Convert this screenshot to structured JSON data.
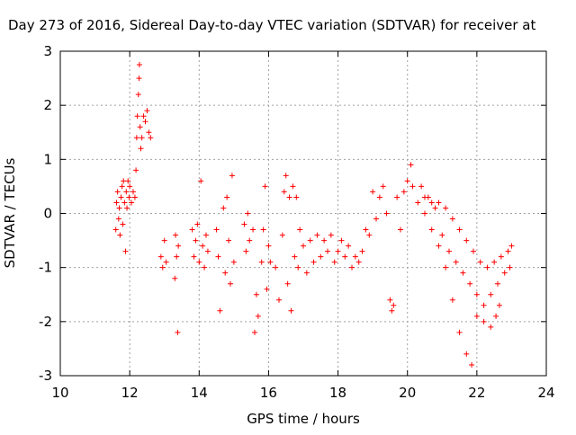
{
  "chart_data": {
    "type": "scatter",
    "title": "Day 273 of 2016, Sidereal Day-to-day VTEC variation (SDTVAR) for receiver at",
    "xlabel": "GPS time / hours",
    "ylabel": "SDTVAR / TECUs",
    "xlim": [
      10,
      24
    ],
    "ylim": [
      -3,
      3
    ],
    "xticks": [
      10,
      12,
      14,
      16,
      18,
      20,
      22,
      24
    ],
    "yticks": [
      -3,
      -2,
      -1,
      0,
      1,
      2,
      3
    ],
    "xtick_labels": [
      "10",
      "12",
      "14",
      "16",
      "18",
      "20",
      "22",
      "24"
    ],
    "ytick_labels": [
      "-3",
      "-2",
      "-1",
      "0",
      "1",
      "2",
      "3"
    ],
    "grid": true,
    "marker": "plus",
    "color": "#ff0000",
    "series": [
      {
        "name": "SDTVAR",
        "points": [
          [
            11.6,
            -0.3
          ],
          [
            11.62,
            0.2
          ],
          [
            11.65,
            0.4
          ],
          [
            11.68,
            -0.1
          ],
          [
            11.7,
            0.1
          ],
          [
            11.72,
            -0.4
          ],
          [
            11.75,
            0.3
          ],
          [
            11.78,
            0.5
          ],
          [
            11.8,
            -0.2
          ],
          [
            11.82,
            0.6
          ],
          [
            11.85,
            0.2
          ],
          [
            11.88,
            -0.7
          ],
          [
            11.9,
            0.4
          ],
          [
            11.92,
            0.1
          ],
          [
            11.95,
            0.6
          ],
          [
            11.98,
            0.3
          ],
          [
            12.0,
            0.5
          ],
          [
            12.05,
            0.2
          ],
          [
            12.1,
            0.4
          ],
          [
            12.15,
            0.3
          ],
          [
            12.18,
            0.8
          ],
          [
            12.2,
            1.4
          ],
          [
            12.22,
            1.8
          ],
          [
            12.25,
            2.2
          ],
          [
            12.27,
            2.5
          ],
          [
            12.28,
            2.75
          ],
          [
            12.3,
            1.6
          ],
          [
            12.32,
            1.2
          ],
          [
            12.35,
            1.4
          ],
          [
            12.4,
            1.8
          ],
          [
            12.45,
            1.7
          ],
          [
            12.5,
            1.9
          ],
          [
            12.55,
            1.5
          ],
          [
            12.6,
            1.4
          ],
          [
            12.9,
            -0.8
          ],
          [
            12.95,
            -1.0
          ],
          [
            13.0,
            -0.5
          ],
          [
            13.05,
            -0.9
          ],
          [
            13.3,
            -1.2
          ],
          [
            13.32,
            -0.4
          ],
          [
            13.35,
            -0.8
          ],
          [
            13.38,
            -2.2
          ],
          [
            13.4,
            -0.6
          ],
          [
            13.8,
            -0.3
          ],
          [
            13.85,
            -0.8
          ],
          [
            13.9,
            -0.5
          ],
          [
            13.95,
            -0.2
          ],
          [
            14.0,
            -0.9
          ],
          [
            14.05,
            0.6
          ],
          [
            14.1,
            -0.6
          ],
          [
            14.15,
            -1.0
          ],
          [
            14.2,
            -0.4
          ],
          [
            14.25,
            -0.7
          ],
          [
            14.5,
            -0.3
          ],
          [
            14.55,
            -0.8
          ],
          [
            14.6,
            -1.8
          ],
          [
            14.7,
            0.1
          ],
          [
            14.75,
            -1.1
          ],
          [
            14.8,
            0.3
          ],
          [
            14.85,
            -0.5
          ],
          [
            14.9,
            -1.3
          ],
          [
            14.95,
            0.7
          ],
          [
            15.0,
            -0.9
          ],
          [
            15.3,
            -0.2
          ],
          [
            15.35,
            -0.7
          ],
          [
            15.4,
            0.0
          ],
          [
            15.45,
            -0.5
          ],
          [
            15.55,
            -0.3
          ],
          [
            15.6,
            -2.2
          ],
          [
            15.65,
            -1.5
          ],
          [
            15.7,
            -1.9
          ],
          [
            15.8,
            -0.9
          ],
          [
            15.85,
            -0.3
          ],
          [
            15.9,
            0.5
          ],
          [
            15.95,
            -1.4
          ],
          [
            16.0,
            -0.6
          ],
          [
            16.05,
            -0.9
          ],
          [
            16.2,
            -1.0
          ],
          [
            16.3,
            -1.6
          ],
          [
            16.4,
            -0.4
          ],
          [
            16.45,
            0.4
          ],
          [
            16.5,
            0.7
          ],
          [
            16.55,
            -1.3
          ],
          [
            16.6,
            0.3
          ],
          [
            16.65,
            -1.8
          ],
          [
            16.7,
            0.5
          ],
          [
            16.75,
            -0.8
          ],
          [
            16.8,
            0.3
          ],
          [
            16.85,
            -1.0
          ],
          [
            16.9,
            -0.3
          ],
          [
            17.0,
            -0.6
          ],
          [
            17.1,
            -1.1
          ],
          [
            17.2,
            -0.5
          ],
          [
            17.3,
            -0.9
          ],
          [
            17.4,
            -0.4
          ],
          [
            17.5,
            -0.8
          ],
          [
            17.6,
            -0.5
          ],
          [
            17.7,
            -0.7
          ],
          [
            17.8,
            -0.4
          ],
          [
            17.9,
            -0.9
          ],
          [
            18.0,
            -0.7
          ],
          [
            18.1,
            -0.5
          ],
          [
            18.2,
            -0.8
          ],
          [
            18.3,
            -0.6
          ],
          [
            18.4,
            -1.0
          ],
          [
            18.5,
            -0.8
          ],
          [
            18.6,
            -0.9
          ],
          [
            18.7,
            -0.7
          ],
          [
            18.8,
            -0.3
          ],
          [
            18.9,
            -0.4
          ],
          [
            19.0,
            0.4
          ],
          [
            19.1,
            -0.1
          ],
          [
            19.2,
            0.3
          ],
          [
            19.3,
            0.5
          ],
          [
            19.4,
            0.0
          ],
          [
            19.5,
            -1.6
          ],
          [
            19.55,
            -1.8
          ],
          [
            19.6,
            -1.7
          ],
          [
            19.7,
            0.3
          ],
          [
            19.8,
            -0.3
          ],
          [
            19.9,
            0.4
          ],
          [
            20.0,
            0.6
          ],
          [
            20.1,
            0.9
          ],
          [
            20.15,
            0.5
          ],
          [
            20.3,
            0.2
          ],
          [
            20.5,
            0.0
          ],
          [
            20.7,
            -0.3
          ],
          [
            20.9,
            -0.6
          ],
          [
            21.1,
            -1.0
          ],
          [
            21.3,
            -1.6
          ],
          [
            21.5,
            -2.2
          ],
          [
            21.7,
            -2.6
          ],
          [
            21.85,
            -2.8
          ],
          [
            20.4,
            0.5
          ],
          [
            20.6,
            0.3
          ],
          [
            20.8,
            0.1
          ],
          [
            21.0,
            -0.4
          ],
          [
            21.2,
            -0.7
          ],
          [
            21.4,
            -0.9
          ],
          [
            21.6,
            -1.1
          ],
          [
            21.8,
            -1.3
          ],
          [
            22.0,
            -1.5
          ],
          [
            22.2,
            -1.7
          ],
          [
            22.4,
            -1.5
          ],
          [
            22.6,
            -1.3
          ],
          [
            22.8,
            -1.1
          ],
          [
            22.95,
            -1.0
          ],
          [
            20.5,
            0.3
          ],
          [
            20.7,
            0.2
          ],
          [
            20.9,
            0.2
          ],
          [
            21.1,
            0.1
          ],
          [
            21.3,
            -0.1
          ],
          [
            21.5,
            -0.3
          ],
          [
            21.7,
            -0.5
          ],
          [
            21.9,
            -0.7
          ],
          [
            22.1,
            -0.9
          ],
          [
            22.3,
            -1.0
          ],
          [
            22.5,
            -0.9
          ],
          [
            22.7,
            -0.8
          ],
          [
            22.9,
            -0.7
          ],
          [
            23.0,
            -0.6
          ],
          [
            22.0,
            -1.9
          ],
          [
            22.2,
            -2.0
          ],
          [
            22.4,
            -2.1
          ],
          [
            22.55,
            -1.9
          ],
          [
            22.65,
            -1.7
          ]
        ]
      }
    ]
  }
}
